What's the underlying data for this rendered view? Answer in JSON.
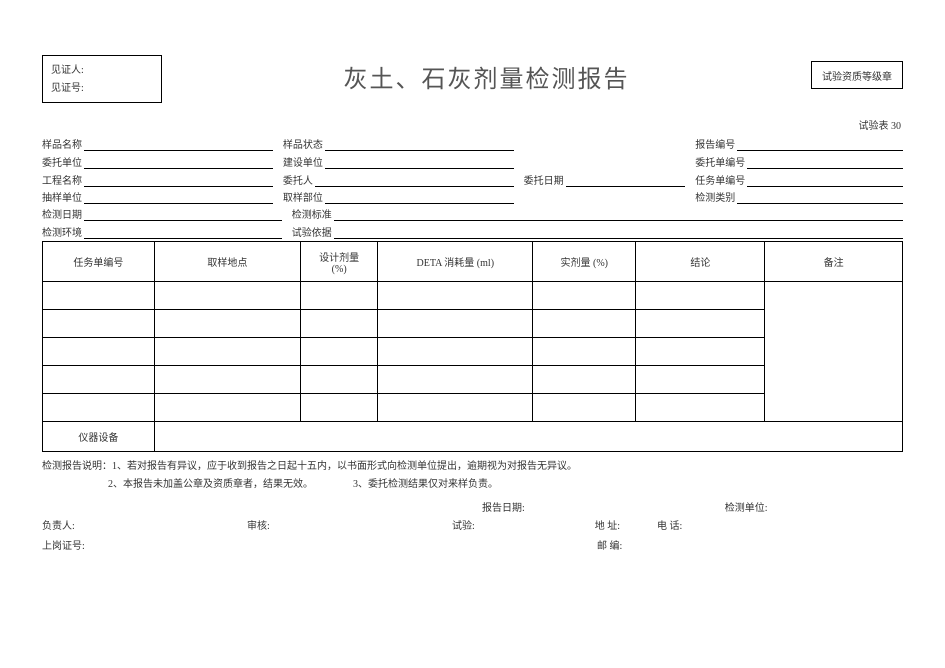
{
  "witness": {
    "person_label": "见证人:",
    "no_label": "见证号:"
  },
  "title": "灰土、石灰剂量检测报告",
  "stamp_label": "试验资质等级章",
  "table_no": "试验表 30",
  "meta": {
    "sample_name": "样品名称",
    "sample_state": "样品状态",
    "report_no": "报告编号",
    "entrust_unit": "委托单位",
    "build_unit": "建设单位",
    "entrust_no": "委托单编号",
    "project_name": "工程名称",
    "entrust_person": "委托人",
    "entrust_date": "委托日期",
    "task_no": "任务单编号",
    "sample_unit": "抽样单位",
    "sample_part": "取样部位",
    "test_type": "检测类别",
    "test_date": "检测日期",
    "test_standard": "检测标准",
    "test_env": "检测环境",
    "test_basis": "试验依据"
  },
  "table_headers": {
    "c1": "任务单编号",
    "c2": "取样地点",
    "c3_a": "设计剂量",
    "c3_b": "(%)",
    "c4": "DETA 消耗量 (ml)",
    "c5": "实剂量  (%)",
    "c6": "结论",
    "c7": "备注"
  },
  "equip_label": "仪器设备",
  "notes": {
    "prefix": "检测报告说明：",
    "n1": "1、若对报告有异议，应于收到报告之日起十五内，以书面形式向检测单位提出，逾期视为对报告无异议。",
    "n2": "2、本报告未加盖公章及资质章者，结果无效。",
    "n3": "3、委托检测结果仅对来样负责。"
  },
  "footer": {
    "report_date": "报告日期:",
    "test_unit": "检测单位:",
    "responsible": "负责人:",
    "reviewer": "审核:",
    "tester": "试验:",
    "address": "地     址:",
    "phone": "电     话:",
    "cert_no": "上岗证号:",
    "postcode": "邮     编:"
  },
  "col_widths": [
    "13%",
    "17%",
    "9%",
    "18%",
    "12%",
    "15%",
    "16%"
  ]
}
